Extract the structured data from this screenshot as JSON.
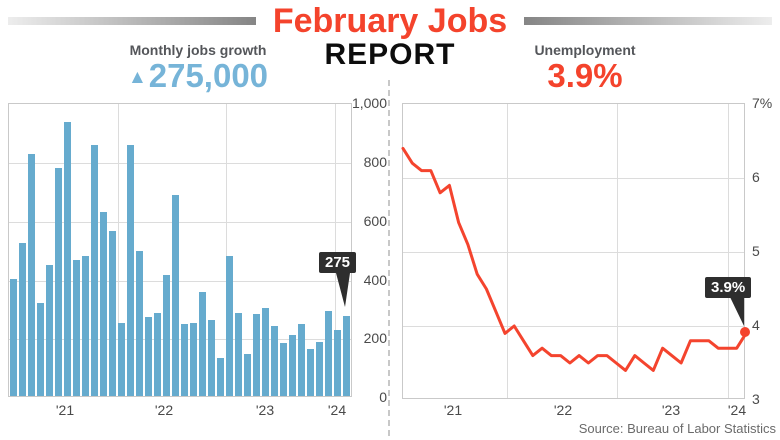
{
  "header": {
    "title_line1": "February Jobs",
    "title_line2": "REPORT"
  },
  "stats": {
    "left": {
      "label": "Monthly jobs growth",
      "arrow": "▲",
      "value": "275,000"
    },
    "right": {
      "label": "Unemployment",
      "value": "3.9%"
    }
  },
  "source": "Source: Bureau of Labor Statistics",
  "colors": {
    "title_red": "#f4432c",
    "stat_blue": "#76b4d8",
    "bar_blue": "#66abce",
    "line_red": "#f4442e",
    "badge_bg": "#2e2e2e"
  },
  "chart_data": [
    {
      "type": "bar",
      "title": "Monthly jobs growth",
      "unit": "thousands of jobs",
      "frequency": "monthly",
      "x_start": "Jan 2021",
      "x_end": "Feb 2024",
      "x_tick_labels": [
        "'21",
        "'22",
        "'23",
        "'24"
      ],
      "y_tick_labels": [
        "1,000",
        "800",
        "600",
        "400",
        "200",
        "0"
      ],
      "ylim": [
        0,
        1000
      ],
      "grid": true,
      "values": [
        400,
        525,
        830,
        320,
        450,
        780,
        940,
        465,
        480,
        860,
        630,
        565,
        250,
        860,
        495,
        270,
        285,
        415,
        690,
        245,
        250,
        355,
        260,
        130,
        480,
        285,
        145,
        280,
        300,
        240,
        180,
        210,
        245,
        160,
        185,
        290,
        225,
        275
      ],
      "annotation": {
        "label": "275",
        "points_to": "Feb 2024"
      }
    },
    {
      "type": "line",
      "title": "Unemployment",
      "unit": "percent",
      "frequency": "monthly",
      "x_start": "Jan 2021",
      "x_end": "Feb 2024",
      "x_tick_labels": [
        "'21",
        "'22",
        "'23",
        "'24"
      ],
      "y_tick_labels": [
        "7%",
        "6",
        "5",
        "4",
        "3"
      ],
      "ylim": [
        3,
        7
      ],
      "grid": true,
      "values": [
        6.4,
        6.2,
        6.1,
        6.1,
        5.8,
        5.9,
        5.4,
        5.1,
        4.7,
        4.5,
        4.2,
        3.9,
        4.0,
        3.8,
        3.6,
        3.7,
        3.6,
        3.6,
        3.5,
        3.6,
        3.5,
        3.6,
        3.6,
        3.5,
        3.4,
        3.6,
        3.5,
        3.4,
        3.7,
        3.6,
        3.5,
        3.8,
        3.8,
        3.8,
        3.7,
        3.7,
        3.7,
        3.9
      ],
      "annotation": {
        "label": "3.9%",
        "points_to": "Feb 2024"
      }
    }
  ]
}
